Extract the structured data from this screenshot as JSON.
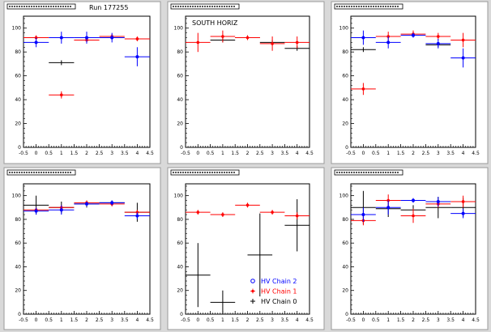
{
  "run_label": "Run 177255",
  "colors": {
    "chain2": "#0000ff",
    "chain1": "#ff0000",
    "chain0": "#000000"
  },
  "legend": [
    {
      "series": "chain2",
      "label": "HV Chain 2",
      "marker": "circle"
    },
    {
      "series": "chain1",
      "label": "HV Chain 1",
      "marker": "star"
    },
    {
      "series": "chain0",
      "label": "HV Chain 0",
      "marker": "plus"
    }
  ],
  "chart_data": [
    {
      "type": "scatter",
      "title": "",
      "annotation": "",
      "xlim": [
        -0.5,
        4.5
      ],
      "ylim": [
        0,
        110
      ],
      "xticks": [
        "-0.5",
        "0",
        "0.5",
        "1",
        "1.5",
        "2",
        "2.5",
        "3",
        "3.5",
        "4",
        "4.5"
      ],
      "yticks": [
        "0",
        "20",
        "40",
        "60",
        "80",
        "100"
      ],
      "series": [
        {
          "color_key": "chain0",
          "points": [
            [
              1,
              71,
              0.5,
              2
            ]
          ]
        },
        {
          "color_key": "chain1",
          "points": [
            [
              0,
              92,
              0.5,
              2
            ],
            [
              1,
              44,
              0.5,
              3
            ],
            [
              2,
              90,
              0.5,
              2
            ],
            [
              3,
              93,
              0.5,
              2
            ],
            [
              4,
              91,
              0.5,
              2
            ]
          ]
        },
        {
          "color_key": "chain2",
          "points": [
            [
              0,
              88,
              0.5,
              4
            ],
            [
              1,
              92,
              0.5,
              5
            ],
            [
              2,
              92,
              0.5,
              5
            ],
            [
              3,
              92,
              0.5,
              4
            ],
            [
              4,
              76,
              0.5,
              8
            ]
          ]
        }
      ]
    },
    {
      "type": "scatter",
      "title": "",
      "annotation": "SOUTH HORIZ",
      "xlim": [
        -0.5,
        4.5
      ],
      "ylim": [
        0,
        110
      ],
      "xticks": [
        "-0.5",
        "0",
        "0.5",
        "1",
        "1.5",
        "2",
        "2.5",
        "3",
        "3.5",
        "4",
        "4.5"
      ],
      "yticks": [
        "0",
        "20",
        "40",
        "60",
        "80",
        "100"
      ],
      "series": [
        {
          "color_key": "chain0",
          "points": [
            [
              1,
              90,
              0.5,
              2
            ],
            [
              2,
              92,
              0.5,
              2
            ],
            [
              3,
              88,
              0.5,
              2
            ],
            [
              4,
              83,
              0.5,
              2
            ]
          ]
        },
        {
          "color_key": "chain1",
          "points": [
            [
              0,
              88,
              0.5,
              8
            ],
            [
              1,
              93,
              0.5,
              5
            ],
            [
              2,
              92,
              0.5,
              2
            ],
            [
              3,
              87,
              0.5,
              6
            ],
            [
              4,
              88,
              0.5,
              5
            ]
          ]
        }
      ]
    },
    {
      "type": "scatter",
      "title": "",
      "annotation": "",
      "xlim": [
        -0.5,
        4.5
      ],
      "ylim": [
        0,
        110
      ],
      "xticks": [
        "-0.5",
        "0",
        "0.5",
        "1",
        "1.5",
        "2",
        "2.5",
        "3",
        "3.5",
        "4",
        "4.5"
      ],
      "yticks": [
        "0",
        "20",
        "40",
        "60",
        "80",
        "100"
      ],
      "series": [
        {
          "color_key": "chain0",
          "points": [
            [
              0,
              82,
              0.5,
              2
            ],
            [
              3,
              86,
              0.5,
              2
            ]
          ]
        },
        {
          "color_key": "chain1",
          "points": [
            [
              0,
              49,
              0.5,
              5
            ],
            [
              1,
              93,
              0.5,
              4
            ],
            [
              2,
              95,
              0.5,
              3
            ],
            [
              3,
              93,
              0.5,
              3
            ],
            [
              4,
              90,
              0.5,
              6
            ]
          ]
        },
        {
          "color_key": "chain2",
          "points": [
            [
              0,
              92,
              0.5,
              6
            ],
            [
              1,
              88,
              0.5,
              5
            ],
            [
              2,
              94,
              0.5,
              2
            ],
            [
              3,
              87,
              0.5,
              4
            ],
            [
              4,
              75,
              0.5,
              8
            ]
          ]
        }
      ]
    },
    {
      "type": "scatter",
      "title": "",
      "annotation": "",
      "xlim": [
        -0.5,
        4.5
      ],
      "ylim": [
        0,
        110
      ],
      "xticks": [
        "-0.5",
        "0",
        "0.5",
        "1",
        "1.5",
        "2",
        "2.5",
        "3",
        "3.5",
        "4",
        "4.5"
      ],
      "yticks": [
        "0",
        "20",
        "40",
        "60",
        "80",
        "100"
      ],
      "series": [
        {
          "color_key": "chain0",
          "points": [
            [
              0,
              92,
              0.5,
              8
            ],
            [
              1,
              90,
              0.5,
              5
            ],
            [
              2,
              93,
              0.5,
              3
            ],
            [
              3,
              94,
              0.5,
              2
            ],
            [
              4,
              86,
              0.5,
              8
            ]
          ]
        },
        {
          "color_key": "chain1",
          "points": [
            [
              0,
              88,
              0.5,
              2
            ],
            [
              1,
              90,
              0.5,
              2
            ],
            [
              2,
              94,
              0.5,
              2
            ],
            [
              3,
              93,
              0.5,
              2
            ],
            [
              4,
              86,
              0.5,
              2
            ]
          ]
        },
        {
          "color_key": "chain2",
          "points": [
            [
              0,
              87,
              0.5,
              3
            ],
            [
              1,
              88,
              0.5,
              4
            ],
            [
              2,
              93,
              0.5,
              2
            ],
            [
              3,
              94,
              0.5,
              2
            ],
            [
              4,
              83,
              0.5,
              3
            ]
          ]
        }
      ]
    },
    {
      "type": "scatter",
      "title": "",
      "annotation": "",
      "xlim": [
        -0.5,
        4.5
      ],
      "ylim": [
        0,
        110
      ],
      "xticks": [
        "-0.5",
        "0",
        "0.5",
        "1",
        "1.5",
        "2",
        "2.5",
        "3",
        "3.5",
        "4",
        "4.5"
      ],
      "yticks": [
        "0",
        "20",
        "40",
        "60",
        "80",
        "100"
      ],
      "series": [
        {
          "color_key": "chain0",
          "points": [
            [
              0,
              33,
              0.5,
              27
            ],
            [
              1,
              10,
              0.5,
              10
            ],
            [
              2.5,
              50,
              0.5,
              35
            ],
            [
              4,
              75,
              0.5,
              22
            ]
          ]
        },
        {
          "color_key": "chain1",
          "points": [
            [
              0,
              86,
              0.5,
              2
            ],
            [
              1,
              84,
              0.5,
              2
            ],
            [
              2,
              92,
              0.5,
              2
            ],
            [
              3,
              86,
              0.5,
              2
            ],
            [
              4,
              83,
              0.5,
              3
            ]
          ]
        }
      ],
      "legend": true
    },
    {
      "type": "scatter",
      "title": "",
      "annotation": "",
      "xlim": [
        -0.5,
        4.5
      ],
      "ylim": [
        0,
        110
      ],
      "xticks": [
        "-0.5",
        "0",
        "0.5",
        "1",
        "1.5",
        "2",
        "2.5",
        "3",
        "3.5",
        "4",
        "4.5"
      ],
      "yticks": [
        "0",
        "20",
        "40",
        "60",
        "80",
        "100"
      ],
      "series": [
        {
          "color_key": "chain0",
          "points": [
            [
              0,
              90,
              0.5,
              14
            ],
            [
              1,
              89,
              0.5,
              7
            ],
            [
              2,
              88,
              0.5,
              4
            ],
            [
              3,
              90,
              0.5,
              9
            ],
            [
              4,
              90,
              0.5,
              8
            ]
          ]
        },
        {
          "color_key": "chain1",
          "points": [
            [
              0,
              79,
              0.5,
              4
            ],
            [
              1,
              96,
              0.5,
              5
            ],
            [
              2,
              83,
              0.5,
              6
            ],
            [
              3,
              93,
              0.5,
              3
            ],
            [
              4,
              95,
              0.5,
              5
            ]
          ]
        },
        {
          "color_key": "chain2",
          "points": [
            [
              0,
              84,
              0.5,
              6
            ],
            [
              1,
              90,
              0.5,
              6
            ],
            [
              2,
              96,
              0.5,
              2
            ],
            [
              3,
              95,
              0.5,
              4
            ],
            [
              4,
              85,
              0.5,
              4
            ]
          ]
        }
      ]
    }
  ]
}
